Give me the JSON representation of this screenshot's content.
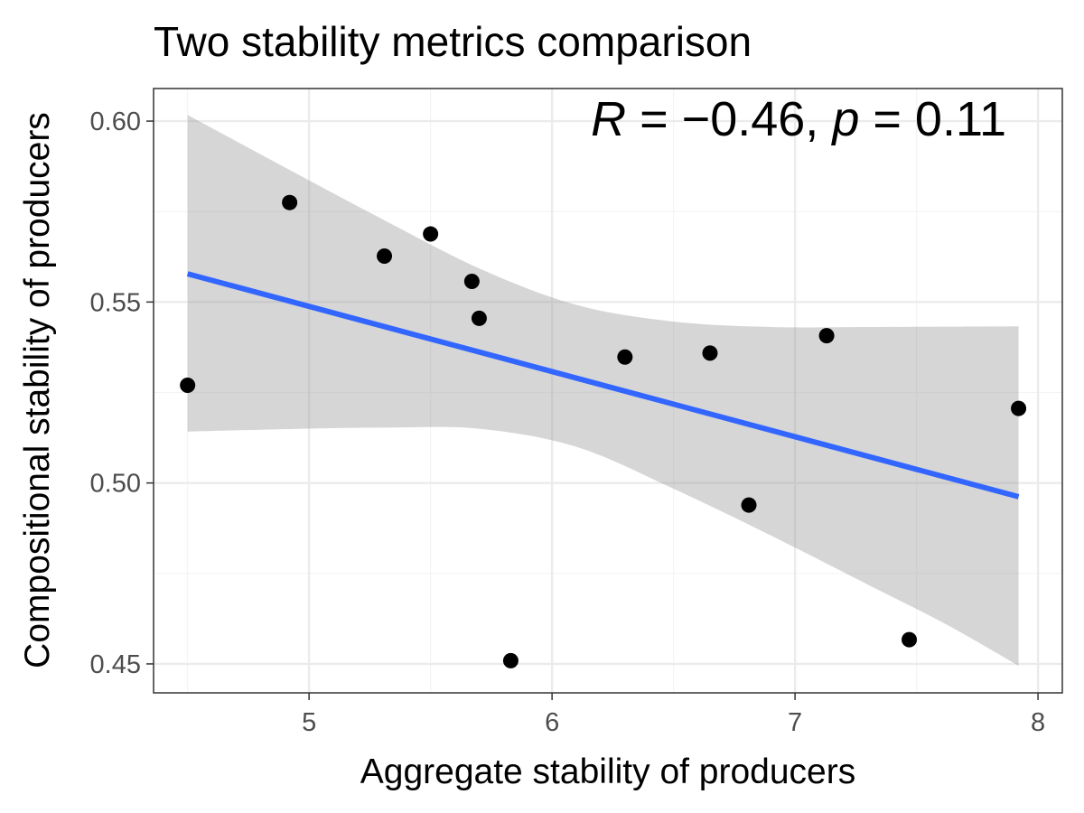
{
  "chart_data": {
    "type": "scatter",
    "title": "Two stability metrics comparison",
    "xlabel": "Aggregate stability of producers",
    "ylabel": "Compositional stability of producers",
    "xlim": [
      4.36,
      8.1
    ],
    "ylim": [
      0.442,
      0.609
    ],
    "x_ticks": [
      5,
      6,
      7,
      8
    ],
    "x_tick_labels": [
      "5",
      "6",
      "7",
      "8"
    ],
    "y_ticks": [
      0.45,
      0.5,
      0.55,
      0.6
    ],
    "y_tick_labels": [
      "0.45",
      "0.50",
      "0.55",
      "0.60"
    ],
    "grid": true,
    "theme": "bw",
    "points": [
      {
        "x": 4.5,
        "y": 0.527
      },
      {
        "x": 4.92,
        "y": 0.5775
      },
      {
        "x": 5.31,
        "y": 0.5627
      },
      {
        "x": 5.5,
        "y": 0.5688
      },
      {
        "x": 5.67,
        "y": 0.5557
      },
      {
        "x": 5.7,
        "y": 0.5455
      },
      {
        "x": 5.83,
        "y": 0.4509
      },
      {
        "x": 6.3,
        "y": 0.5348
      },
      {
        "x": 6.65,
        "y": 0.5359
      },
      {
        "x": 6.81,
        "y": 0.4939
      },
      {
        "x": 7.13,
        "y": 0.5407
      },
      {
        "x": 7.47,
        "y": 0.4567
      },
      {
        "x": 7.92,
        "y": 0.5206
      }
    ],
    "fit_line": {
      "x": [
        4.5,
        7.92
      ],
      "y": [
        0.5578,
        0.4962
      ]
    },
    "confidence_band": {
      "x": [
        4.5,
        4.92,
        5.31,
        5.7,
        6.1,
        6.5,
        6.9,
        7.3,
        7.62,
        7.92
      ],
      "upper": [
        0.6017,
        0.5865,
        0.5726,
        0.5593,
        0.5492,
        0.5446,
        0.5431,
        0.5431,
        0.5432,
        0.5433
      ],
      "lower": [
        0.5142,
        0.5149,
        0.5153,
        0.515,
        0.51,
        0.4984,
        0.4855,
        0.4719,
        0.461,
        0.4495
      ]
    },
    "annotation": {
      "r_label": "R",
      "r_value": "−0.46",
      "p_label": "p",
      "p_value": "0.11"
    },
    "colors": {
      "points": "#000000",
      "fit_line": "#3366ff",
      "band": "#999999",
      "grid_major": "#ebebeb",
      "grid_minor": "#f4f4f4",
      "panel_border": "#333333",
      "tick_text": "#4d4d4d"
    }
  }
}
